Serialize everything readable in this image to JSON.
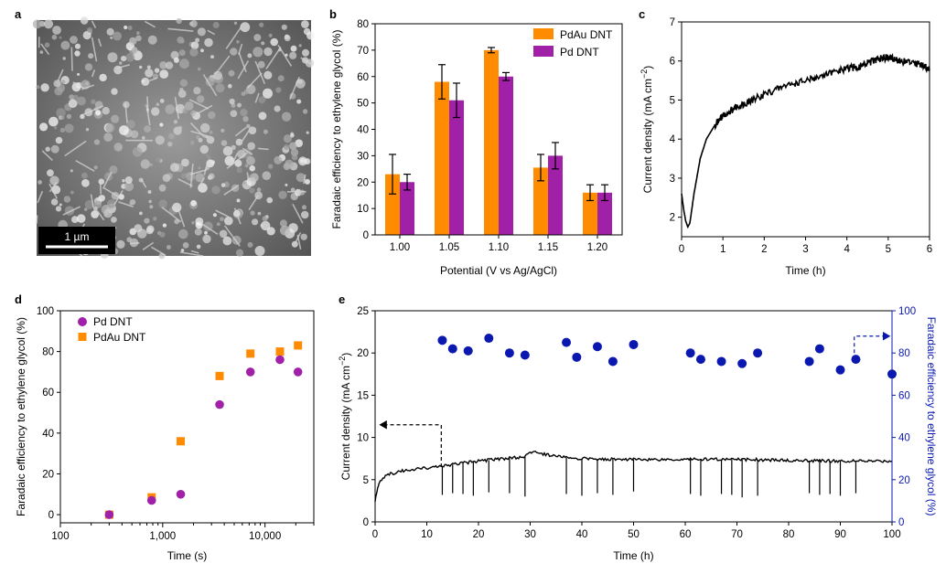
{
  "panels": {
    "a": {
      "letter": "a",
      "scale_bar": "1 µm"
    },
    "b": {
      "letter": "b"
    },
    "c": {
      "letter": "c"
    },
    "d": {
      "letter": "d"
    },
    "e": {
      "letter": "e"
    }
  },
  "colors": {
    "orange": "#FF8C00",
    "purple": "#A020A8",
    "blue": "#0A18B0",
    "black": "#000000"
  },
  "chart_data": [
    {
      "panel": "b",
      "type": "bar",
      "xlabel": "Potential (V vs Ag/AgCl)",
      "ylabel": "Faradaic efficiency to ethylene glycol (%)",
      "ylim": [
        0,
        80
      ],
      "yticks": [
        "0",
        "10",
        "20",
        "30",
        "40",
        "50",
        "60",
        "70",
        "80"
      ],
      "categories": [
        "1.00",
        "1.05",
        "1.10",
        "1.15",
        "1.20"
      ],
      "legend_position": "top-right",
      "series": [
        {
          "name": "PdAu DNT",
          "color": "#FF8C00",
          "values": [
            23,
            58,
            70,
            25.5,
            16
          ],
          "errors": [
            7.5,
            6.5,
            1,
            5,
            3
          ]
        },
        {
          "name": "Pd DNT",
          "color": "#A020A8",
          "values": [
            20,
            51,
            60,
            30,
            16
          ],
          "errors": [
            3,
            6.5,
            1.5,
            5,
            3
          ]
        }
      ]
    },
    {
      "panel": "c",
      "type": "line",
      "xlabel": "Time (h)",
      "ylabel": "Current density (mA cm",
      "ylabel_sup": "−2",
      "ylabel_end": ")",
      "xlim": [
        0,
        6
      ],
      "ylim": [
        1.5,
        7
      ],
      "xticks": [
        "0",
        "1",
        "2",
        "3",
        "4",
        "5",
        "6"
      ],
      "yticks": [
        "2",
        "3",
        "4",
        "5",
        "6",
        "7"
      ],
      "x": [
        0,
        0.05,
        0.1,
        0.15,
        0.2,
        0.3,
        0.45,
        0.6,
        0.8,
        1.0,
        1.3,
        1.6,
        2.0,
        2.5,
        3.0,
        3.5,
        4.0,
        4.3,
        4.5,
        4.8,
        5.0,
        5.3,
        5.6,
        5.8,
        6.0
      ],
      "y": [
        2.6,
        2.2,
        1.9,
        1.75,
        1.85,
        2.6,
        3.5,
        4.0,
        4.35,
        4.6,
        4.8,
        4.95,
        5.15,
        5.35,
        5.5,
        5.65,
        5.8,
        5.85,
        5.95,
        6.05,
        6.1,
        6.0,
        5.95,
        5.9,
        5.8
      ],
      "color": "#000000"
    },
    {
      "panel": "d",
      "type": "scatter",
      "xlabel": "Time (s)",
      "ylabel": "Faradaic efficiency to ethylene glycol (%)",
      "x_scale": "log",
      "xlim": [
        100,
        30000
      ],
      "ylim": [
        -4,
        100
      ],
      "xticks": [
        "100",
        "1,000",
        "10,000"
      ],
      "yticks": [
        "0",
        "20",
        "40",
        "60",
        "80",
        "100"
      ],
      "legend_position": "top-left",
      "series": [
        {
          "name": "Pd DNT",
          "color": "#A020A8",
          "marker": "circle",
          "x": [
            300,
            780,
            1500,
            3600,
            7200,
            14000,
            21000
          ],
          "y": [
            0,
            7,
            10,
            54,
            70,
            76,
            70
          ]
        },
        {
          "name": "PdAu DNT",
          "color": "#FF8C00",
          "marker": "square",
          "x": [
            300,
            780,
            1500,
            3600,
            7200,
            14000,
            21000
          ],
          "y": [
            0,
            8.5,
            36,
            68,
            79,
            80,
            83
          ]
        }
      ]
    },
    {
      "panel": "e",
      "type": "line+scatter",
      "xlabel": "Time (h)",
      "ylabel_left": "Current density (mA cm",
      "ylabel_left_sup": "−2",
      "ylabel_left_end": ")",
      "ylabel_right": "Faradaic efficiency to ethylene glycol (%)",
      "xlim": [
        0,
        100
      ],
      "ylim_left": [
        0,
        25
      ],
      "ylim_right": [
        0,
        100
      ],
      "xticks": [
        "0",
        "10",
        "20",
        "30",
        "40",
        "50",
        "60",
        "70",
        "80",
        "90",
        "100"
      ],
      "yticks_left": [
        "0",
        "5",
        "10",
        "15",
        "20",
        "25"
      ],
      "yticks_right": [
        "0",
        "20",
        "40",
        "60",
        "80",
        "100"
      ],
      "current": {
        "color": "#000000",
        "x": [
          0,
          0.5,
          1,
          2,
          3,
          5,
          8,
          12,
          15,
          20,
          25,
          29,
          30,
          37,
          40,
          45,
          50,
          60,
          70,
          80,
          90,
          100
        ],
        "y": [
          2.5,
          4,
          4.8,
          5.4,
          5.7,
          6.0,
          6.3,
          6.5,
          6.8,
          7.2,
          7.5,
          7.7,
          8.3,
          7.6,
          7.5,
          7.4,
          7.4,
          7.4,
          7.4,
          7.3,
          7.2,
          7.2
        ],
        "dips_x": [
          13,
          15,
          17,
          19,
          22,
          26,
          29,
          37,
          40,
          43,
          46,
          50,
          61,
          63,
          67,
          69,
          71,
          74,
          84,
          86,
          88,
          90,
          93
        ],
        "dips_y": [
          3.2,
          3.4,
          3.3,
          3.1,
          3.5,
          3.4,
          3.0,
          3.3,
          3.1,
          3.4,
          3.2,
          3.6,
          3.3,
          3.1,
          3.3,
          3.2,
          2.9,
          3.1,
          3.4,
          3.2,
          3.3,
          3.1,
          3.4
        ]
      },
      "fe": {
        "color": "#0A18B0",
        "x": [
          13,
          15,
          18,
          22,
          26,
          29,
          37,
          39,
          43,
          46,
          50,
          61,
          63,
          67,
          71,
          74,
          84,
          86,
          90,
          93,
          100
        ],
        "y": [
          86,
          82,
          81,
          87,
          80,
          79,
          85,
          78,
          83,
          76,
          84,
          80,
          77,
          76,
          75,
          80,
          76,
          82,
          72,
          77,
          70
        ]
      }
    }
  ]
}
